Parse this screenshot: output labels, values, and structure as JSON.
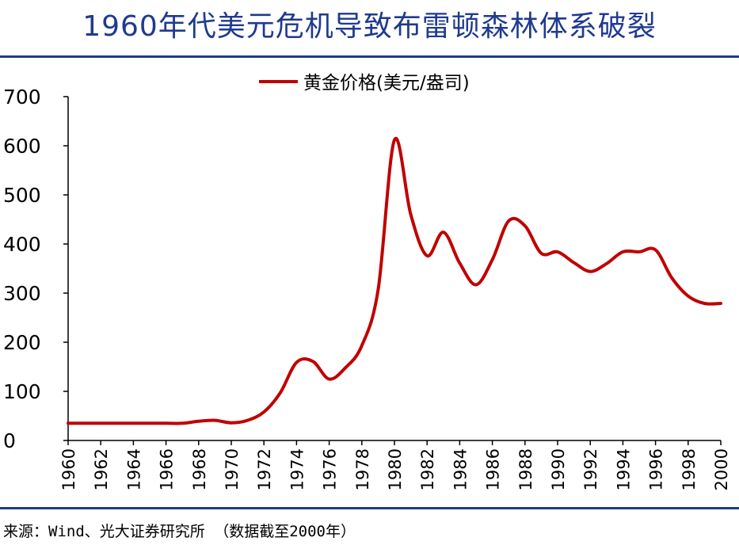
{
  "title": "1960年代美元危机导致布雷顿森林体系破裂",
  "source": "来源：Wind、光大证券研究所 （数据截至2000年）",
  "colors": {
    "title": "#1f3a8f",
    "rule": "#1f3a8f",
    "series": "#c00000",
    "axis": "#000000"
  },
  "chart_data": {
    "type": "line",
    "title": "",
    "xlabel": "",
    "ylabel": "",
    "ylim": [
      0,
      700
    ],
    "xlim": [
      1960,
      2000
    ],
    "yticks": [
      "0",
      "100",
      "200",
      "300",
      "400",
      "500",
      "600",
      "700"
    ],
    "xticks": [
      "1960",
      "1962",
      "1964",
      "1966",
      "1968",
      "1970",
      "1972",
      "1974",
      "1976",
      "1978",
      "1980",
      "1982",
      "1984",
      "1986",
      "1988",
      "1990",
      "1992",
      "1994",
      "1996",
      "1998",
      "2000"
    ],
    "grid": false,
    "legend_position": "top-center",
    "series": [
      {
        "name": "黄金价格(美元/盎司)",
        "x": [
          1960,
          1961,
          1962,
          1963,
          1964,
          1965,
          1966,
          1967,
          1968,
          1969,
          1970,
          1971,
          1972,
          1973,
          1974,
          1975,
          1976,
          1977,
          1978,
          1979,
          1980,
          1981,
          1982,
          1983,
          1984,
          1985,
          1986,
          1987,
          1988,
          1989,
          1990,
          1991,
          1992,
          1993,
          1994,
          1995,
          1996,
          1997,
          1998,
          1999,
          2000
        ],
        "y": [
          35,
          35,
          35,
          35,
          35,
          35,
          35,
          35,
          39,
          41,
          36,
          41,
          58,
          97,
          159,
          161,
          125,
          148,
          193,
          307,
          612,
          460,
          376,
          424,
          361,
          317,
          368,
          447,
          437,
          381,
          384,
          362,
          344,
          360,
          384,
          384,
          388,
          331,
          294,
          279,
          279
        ]
      }
    ]
  }
}
